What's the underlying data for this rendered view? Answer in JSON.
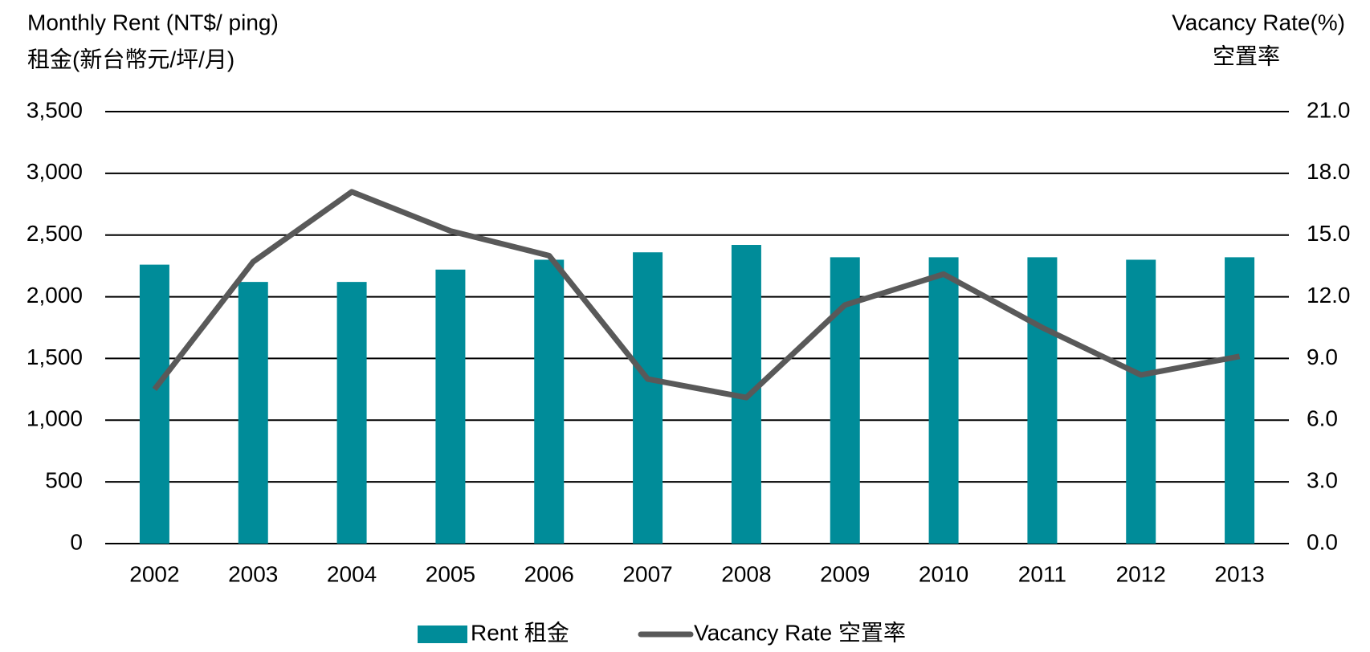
{
  "chart_data": {
    "type": "bar-line",
    "y_title": [
      "Monthly Rent (NT$/ ping)",
      "租金(新台幣元/坪/月)"
    ],
    "y2_title": [
      "Vacancy Rate(%)",
      "空置率"
    ],
    "categories": [
      "2002",
      "2003",
      "2004",
      "2005",
      "2006",
      "2007",
      "2008",
      "2009",
      "2010",
      "2011",
      "2012",
      "2013"
    ],
    "series": [
      {
        "name": "Rent 租金",
        "type": "bar",
        "color": "#008c99",
        "values": [
          2260,
          2120,
          2120,
          2220,
          2300,
          2360,
          2420,
          2320,
          2320,
          2320,
          2300,
          2320
        ]
      },
      {
        "name": "Vacancy Rate  空置率",
        "type": "line",
        "axis": "y2",
        "color": "#595959",
        "values": [
          7.5,
          13.7,
          17.1,
          15.2,
          14.0,
          8.0,
          7.1,
          11.6,
          13.1,
          10.5,
          8.2,
          9.1
        ]
      }
    ],
    "ylim": [
      0,
      3500
    ],
    "yticks": [
      0,
      500,
      {
        "value": 1000,
        "label": "1,000"
      },
      {
        "value": 1500,
        "label": "1,500"
      },
      {
        "value": 2000,
        "label": "2,000"
      },
      {
        "value": 2500,
        "label": "2,500"
      },
      {
        "value": 3000,
        "label": "3,000"
      },
      {
        "value": 3500,
        "label": "3,500"
      }
    ],
    "y2lim": [
      0,
      21
    ],
    "y2ticks": [
      {
        "value": 0,
        "label": "0.0"
      },
      {
        "value": 3,
        "label": "3.0"
      },
      {
        "value": 6,
        "label": "6.0"
      },
      {
        "value": 9,
        "label": "9.0"
      },
      {
        "value": 12,
        "label": "12.0"
      },
      {
        "value": 15,
        "label": "15.0"
      },
      {
        "value": 18,
        "label": "18.0"
      },
      {
        "value": 21,
        "label": "21.0"
      }
    ],
    "grid": true,
    "legend": "bottom"
  }
}
